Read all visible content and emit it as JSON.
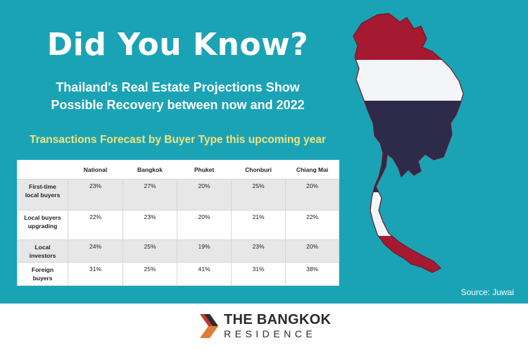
{
  "headline": "Did You Know?",
  "subhead_line1": "Thailand's Real Estate Projections Show",
  "subhead_line2": "Possible Recovery between now and 2022",
  "table_caption": "Transactions Forecast by Buyer Type this upcoming year",
  "table": {
    "columns": [
      "",
      "National",
      "Bangkok",
      "Phuket",
      "Chonburi",
      "Chiang Mai"
    ],
    "rows": [
      {
        "label_line1": "First-time",
        "label_line2": "local buyers",
        "values": [
          "23%",
          "27%",
          "20%",
          "25%",
          "20%"
        ]
      },
      {
        "label_line1": "Local buyers",
        "label_line2": "upgrading",
        "values": [
          "22%",
          "23%",
          "20%",
          "21%",
          "22%"
        ]
      },
      {
        "label_line1": "Local",
        "label_line2": "investors",
        "values": [
          "24%",
          "25%",
          "19%",
          "23%",
          "20%"
        ]
      },
      {
        "label_line1": "Foreign",
        "label_line2": "buyers",
        "values": [
          "31%",
          "25%",
          "41%",
          "31%",
          "38%"
        ]
      }
    ]
  },
  "source": "Source: Juwai",
  "brand": {
    "line1": "THE BANGKOK",
    "line2": "RESIDENCE"
  },
  "colors": {
    "background": "#1aa3b5",
    "caption": "#f4e27c",
    "flag_red": "#a51931",
    "flag_white": "#f4f5f8",
    "flag_blue": "#2d2a4a",
    "logo_orange": "#e07b39"
  },
  "map": {
    "name": "Thailand map with Thai flag stripes"
  }
}
